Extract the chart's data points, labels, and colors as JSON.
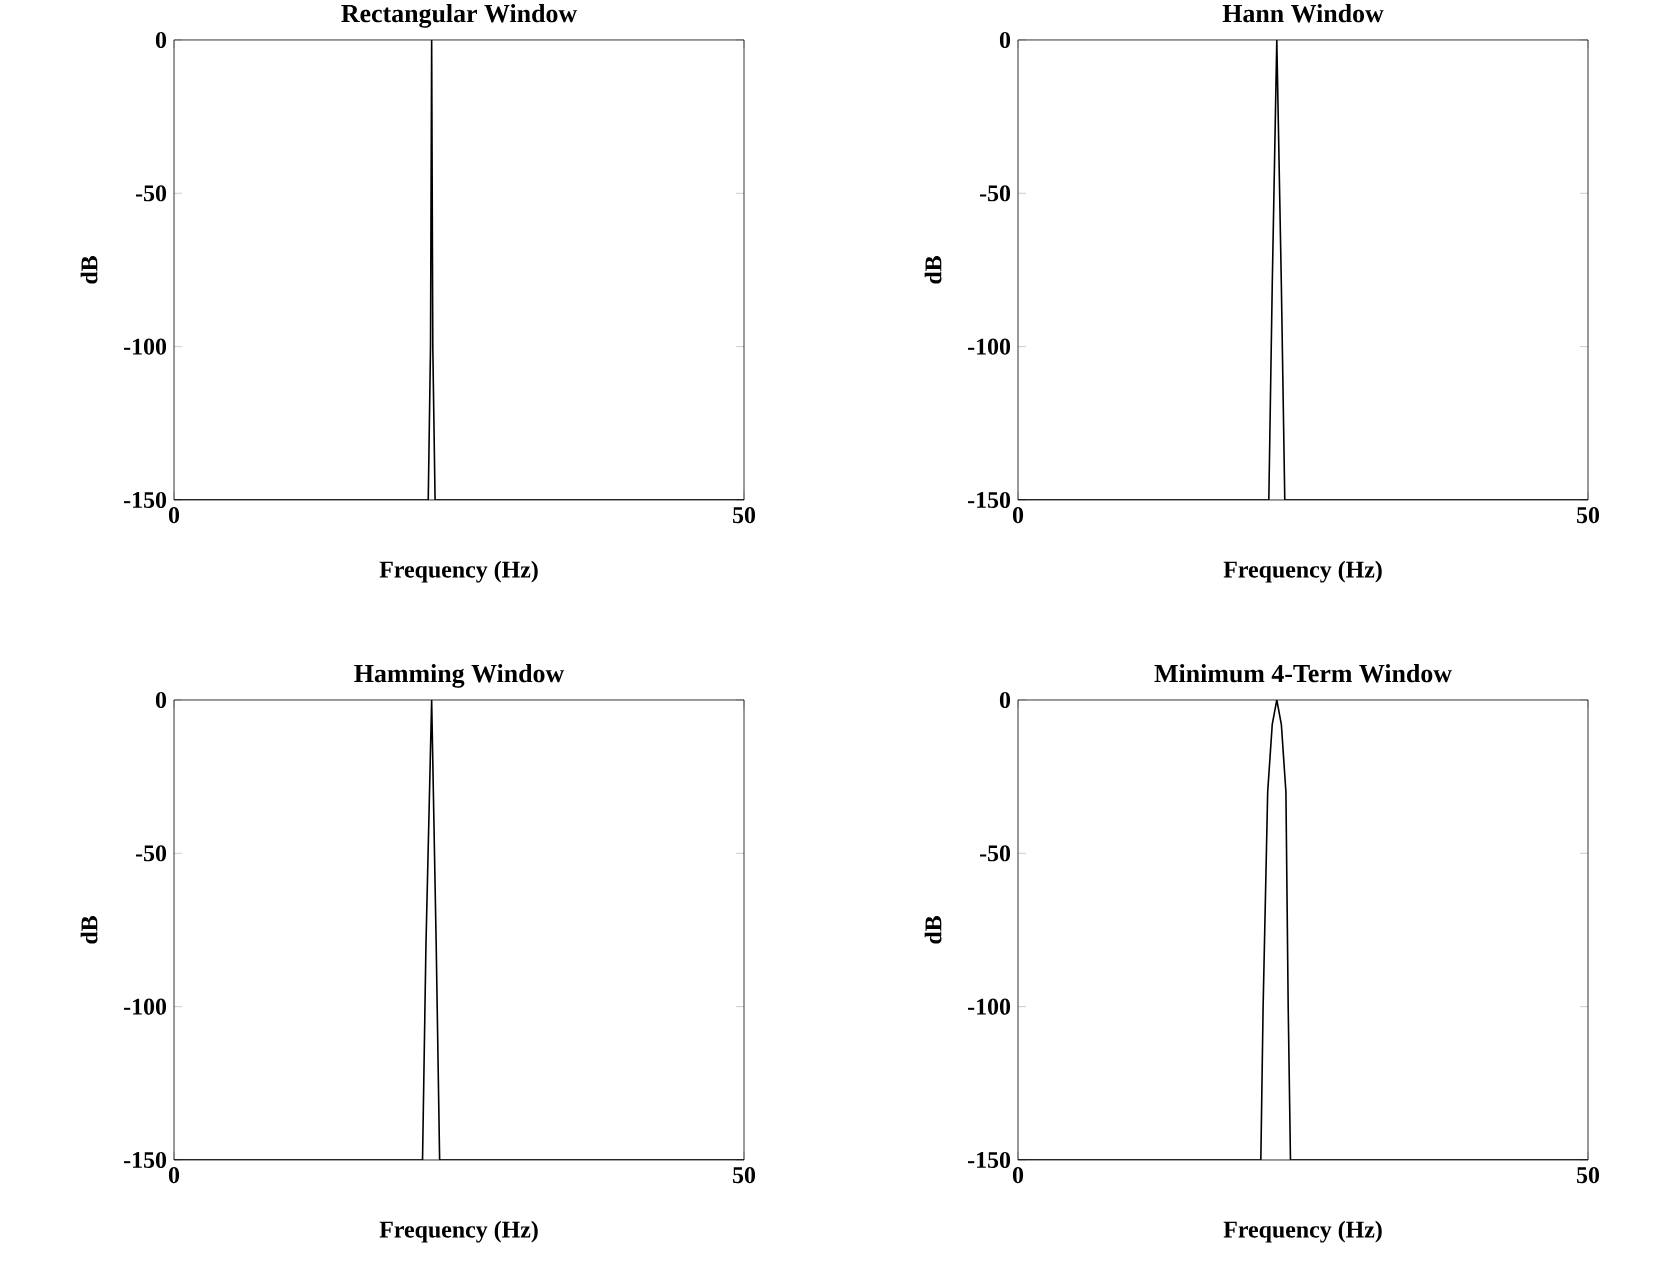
{
  "chart_data": [
    {
      "type": "line",
      "title": "Rectangular Window",
      "xlabel": "Frequency (Hz)",
      "ylabel": "dB",
      "xlim": [
        0,
        50
      ],
      "ylim": [
        -150,
        0
      ],
      "xticks": [
        0,
        50
      ],
      "yticks": [
        0,
        -50,
        -100,
        -150
      ],
      "series": [
        {
          "color": "#000000",
          "x": [
            0,
            22.3,
            22.5,
            22.6,
            22.7,
            22.9,
            50
          ],
          "values": [
            -150,
            -150,
            -100,
            0,
            -100,
            -150,
            -150
          ]
        }
      ]
    },
    {
      "type": "line",
      "title": "Hann Window",
      "xlabel": "Frequency (Hz)",
      "ylabel": "dB",
      "xlim": [
        0,
        50
      ],
      "ylim": [
        -150,
        0
      ],
      "xticks": [
        0,
        50
      ],
      "yticks": [
        0,
        -50,
        -100,
        -150
      ],
      "series": [
        {
          "color": "#000000",
          "x": [
            0,
            22.0,
            22.3,
            22.7,
            23.1,
            23.4,
            50
          ],
          "values": [
            -150,
            -150,
            -80,
            0,
            -80,
            -150,
            -150
          ]
        }
      ]
    },
    {
      "type": "line",
      "title": "Hamming Window",
      "xlabel": "Frequency (Hz)",
      "ylabel": "dB",
      "xlim": [
        0,
        50
      ],
      "ylim": [
        -150,
        0
      ],
      "xticks": [
        0,
        50
      ],
      "yticks": [
        0,
        -50,
        -100,
        -150
      ],
      "series": [
        {
          "color": "#000000",
          "x": [
            0,
            21.8,
            22.1,
            22.6,
            23.0,
            23.3,
            50
          ],
          "values": [
            -150,
            -150,
            -80,
            0,
            -80,
            -150,
            -150
          ]
        }
      ]
    },
    {
      "type": "line",
      "title": "Minimum 4-Term Window",
      "xlabel": "Frequency (Hz)",
      "ylabel": "dB",
      "xlim": [
        0,
        50
      ],
      "ylim": [
        -150,
        0
      ],
      "xticks": [
        0,
        50
      ],
      "yticks": [
        0,
        -50,
        -100,
        -150
      ],
      "series": [
        {
          "color": "#000000",
          "x": [
            0,
            21.3,
            21.5,
            21.9,
            22.3,
            22.7,
            23.1,
            23.5,
            23.7,
            23.9,
            50
          ],
          "values": [
            -150,
            -150,
            -100,
            -30,
            -8,
            0,
            -8,
            -30,
            -100,
            -150,
            -150
          ]
        }
      ]
    }
  ]
}
